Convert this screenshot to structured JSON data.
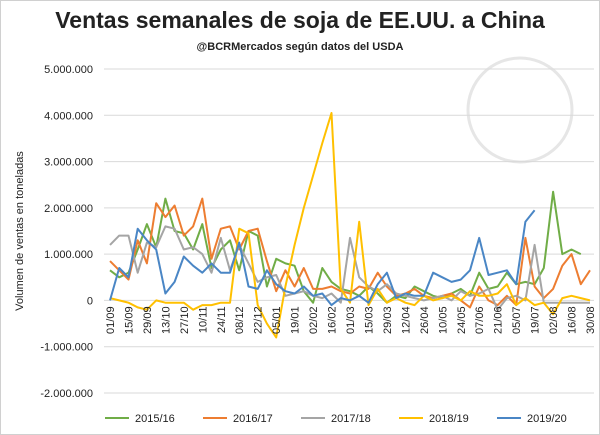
{
  "chart_data": {
    "type": "line",
    "title": "Ventas semanales de soja de EE.UU. a China",
    "subtitle": "@BCRMercados  según datos del USDA",
    "y_label": "Volumen de ventas en toneladas",
    "categories": [
      "01/09",
      null,
      "15/09",
      null,
      "29/09",
      null,
      "13/10",
      null,
      "27/10",
      null,
      "10/11",
      null,
      "24/11",
      null,
      "08/12",
      null,
      "22/12",
      null,
      "05/01",
      null,
      "19/01",
      null,
      "02/02",
      null,
      "16/02",
      null,
      "01/03",
      null,
      "15/03",
      null,
      "29/03",
      null,
      "12/04",
      null,
      "26/04",
      null,
      "10/05",
      null,
      "24/05",
      null,
      "07/06",
      null,
      "21/06",
      null,
      "05/07",
      null,
      "19/07",
      null,
      "02/08",
      null,
      "16/08",
      null,
      "30/08"
    ],
    "ylim": [
      -2000000,
      5000000
    ],
    "yticks": [
      {
        "value": -2000000,
        "label": "-2.000.000"
      },
      {
        "value": -1000000,
        "label": "-1.000.000"
      },
      0,
      {
        "value": 1000000,
        "label": "1.000.000"
      },
      {
        "value": 2000000,
        "label": "2.000.000"
      },
      {
        "value": 3000000,
        "label": "3.000.000"
      },
      {
        "value": 4000000,
        "label": "4.000.000"
      },
      {
        "value": 5000000,
        "label": "5.000.000"
      }
    ],
    "grid": true,
    "legend": "bottom",
    "series": [
      {
        "name": "2015/16",
        "color": "#70ad47",
        "values": [
          650000,
          500000,
          600000,
          1100000,
          1650000,
          1150000,
          2200000,
          1500000,
          1450000,
          1100000,
          1650000,
          700000,
          1100000,
          1300000,
          650000,
          1500000,
          1400000,
          300000,
          900000,
          800000,
          750000,
          200000,
          -50000,
          700000,
          400000,
          250000,
          200000,
          100000,
          300000,
          150000,
          -50000,
          100000,
          50000,
          300000,
          200000,
          100000,
          50000,
          150000,
          250000,
          100000,
          600000,
          250000,
          300000,
          600000,
          350000,
          400000,
          350000,
          700000,
          2350000,
          1000000,
          1100000,
          1000000,
          null
        ]
      },
      {
        "name": "2016/17",
        "color": "#ed7d31",
        "values": [
          850000,
          650000,
          450000,
          1300000,
          800000,
          2100000,
          1800000,
          2050000,
          1400000,
          1600000,
          2200000,
          900000,
          1550000,
          1600000,
          1100000,
          1500000,
          1550000,
          850000,
          200000,
          650000,
          300000,
          700000,
          250000,
          250000,
          300000,
          200000,
          150000,
          300000,
          250000,
          600000,
          300000,
          100000,
          150000,
          250000,
          100000,
          50000,
          100000,
          150000,
          0,
          -150000,
          300000,
          0,
          -100000,
          100000,
          -100000,
          1350000,
          300000,
          50000,
          250000,
          750000,
          1000000,
          350000,
          650000
        ]
      },
      {
        "name": "2017/18",
        "color": "#a5a5a5",
        "values": [
          1200000,
          1400000,
          1400000,
          600000,
          1250000,
          1150000,
          1600000,
          1550000,
          1100000,
          1150000,
          1000000,
          600000,
          1350000,
          650000,
          1200000,
          800000,
          400000,
          500000,
          550000,
          100000,
          150000,
          200000,
          100000,
          50000,
          150000,
          -50000,
          1350000,
          500000,
          300000,
          200000,
          350000,
          150000,
          100000,
          50000,
          0,
          50000,
          100000,
          0,
          200000,
          100000,
          150000,
          250000,
          -200000,
          50000,
          100000,
          0,
          1200000,
          -50000,
          -50000,
          -50000,
          -50000,
          -50000,
          -50000
        ]
      },
      {
        "name": "2018/19",
        "color": "#ffc000",
        "values": [
          50000,
          0,
          -50000,
          -150000,
          -200000,
          0,
          -50000,
          -50000,
          -50000,
          -200000,
          -100000,
          -100000,
          -50000,
          -50000,
          1550000,
          1450000,
          -100000,
          -500000,
          -800000,
          300000,
          1200000,
          2000000,
          2700000,
          3400000,
          4050000,
          250000,
          -50000,
          1700000,
          -100000,
          250000,
          -50000,
          50000,
          -50000,
          -100000,
          100000,
          0,
          50000,
          100000,
          0,
          200000,
          100000,
          100000,
          150000,
          350000,
          -100000,
          50000,
          -100000,
          -50000,
          -300000,
          50000,
          100000,
          50000,
          0
        ]
      },
      {
        "name": "2019/20",
        "color": "#4a86c5",
        "values": [
          0,
          700000,
          500000,
          1550000,
          1300000,
          1100000,
          150000,
          400000,
          950000,
          750000,
          600000,
          800000,
          600000,
          600000,
          1250000,
          300000,
          250000,
          650000,
          350000,
          200000,
          150000,
          300000,
          100000,
          150000,
          -100000,
          50000,
          0,
          100000,
          -50000,
          350000,
          600000,
          50000,
          150000,
          100000,
          100000,
          600000,
          500000,
          400000,
          450000,
          650000,
          1350000,
          550000,
          600000,
          650000,
          350000,
          1700000,
          1950000,
          null,
          null,
          null,
          null,
          null,
          null
        ]
      }
    ]
  }
}
